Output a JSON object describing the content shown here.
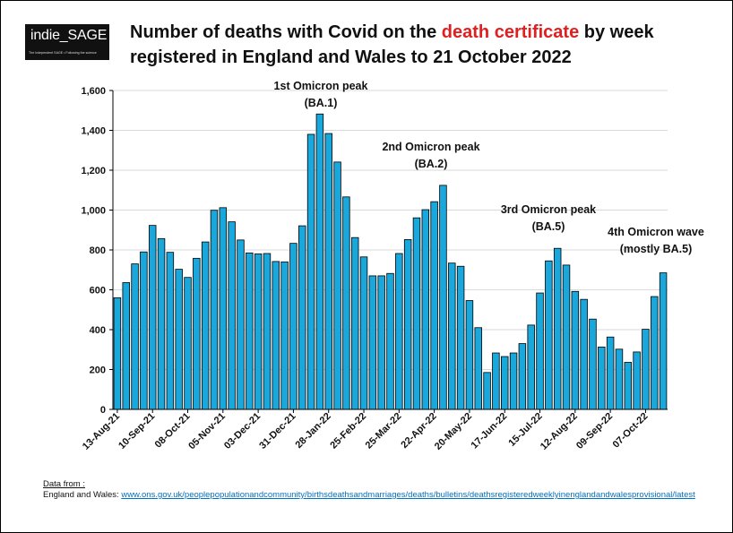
{
  "logo": {
    "name": "indie_SAGE",
    "tagline": "The Independent SAGE • Following the science"
  },
  "title": {
    "part1": "Number of deaths with Covid on the ",
    "highlight": "death certificate",
    "part2": " by week registered in England and Wales to 21 October 2022"
  },
  "colors": {
    "bar_fill": "#1aa7dc",
    "bar_stroke": "#000000",
    "highlight": "#e02020",
    "link": "#0070c0"
  },
  "source": {
    "heading": "Data from :",
    "label": "England and Wales:",
    "url": "www.ons.gov.uk/peoplepopulationandcommunity/birthsdeathsandmarriages/deaths/bulletins/deathsregisteredweeklyinenglandandwalesprovisional/latest"
  },
  "chart_data": {
    "type": "bar",
    "title": "Number of deaths with Covid on the death certificate by week registered in England and Wales to 21 October 2022",
    "xlabel": "",
    "ylabel": "",
    "ylim": [
      0,
      1600
    ],
    "yticks": [
      0,
      200,
      400,
      600,
      800,
      1000,
      1200,
      1400,
      1600
    ],
    "grid": true,
    "tick_labels": [
      "13-Aug-21",
      "10-Sep-21",
      "08-Oct-21",
      "05-Nov-21",
      "03-Dec-21",
      "31-Dec-21",
      "28-Jan-22",
      "25-Feb-22",
      "25-Mar-22",
      "22-Apr-22",
      "20-May-22",
      "17-Jun-22",
      "15-Jul-22",
      "12-Aug-22",
      "09-Sep-22",
      "07-Oct-22"
    ],
    "tick_every": 4,
    "categories": [
      "13-Aug-21",
      "20-Aug-21",
      "27-Aug-21",
      "03-Sep-21",
      "10-Sep-21",
      "17-Sep-21",
      "24-Sep-21",
      "01-Oct-21",
      "08-Oct-21",
      "15-Oct-21",
      "22-Oct-21",
      "29-Oct-21",
      "05-Nov-21",
      "12-Nov-21",
      "19-Nov-21",
      "26-Nov-21",
      "03-Dec-21",
      "10-Dec-21",
      "17-Dec-21",
      "24-Dec-21",
      "31-Dec-21",
      "07-Jan-22",
      "14-Jan-22",
      "21-Jan-22",
      "28-Jan-22",
      "04-Feb-22",
      "11-Feb-22",
      "18-Feb-22",
      "25-Feb-22",
      "04-Mar-22",
      "11-Mar-22",
      "18-Mar-22",
      "25-Mar-22",
      "01-Apr-22",
      "08-Apr-22",
      "15-Apr-22",
      "22-Apr-22",
      "29-Apr-22",
      "06-May-22",
      "13-May-22",
      "20-May-22",
      "27-May-22",
      "03-Jun-22",
      "10-Jun-22",
      "17-Jun-22",
      "24-Jun-22",
      "01-Jul-22",
      "08-Jul-22",
      "15-Jul-22",
      "22-Jul-22",
      "29-Jul-22",
      "05-Aug-22",
      "12-Aug-22",
      "19-Aug-22",
      "26-Aug-22",
      "02-Sep-22",
      "09-Sep-22",
      "16-Sep-22",
      "23-Sep-22",
      "30-Sep-22",
      "07-Oct-22",
      "14-Oct-22",
      "21-Oct-22"
    ],
    "values": [
      560,
      636,
      730,
      790,
      923,
      857,
      788,
      703,
      662,
      758,
      840,
      999,
      1012,
      941,
      850,
      785,
      780,
      782,
      742,
      740,
      833,
      921,
      1380,
      1482,
      1384,
      1241,
      1066,
      862,
      765,
      670,
      670,
      682,
      782,
      852,
      961,
      1002,
      1042,
      1124,
      734,
      718,
      546,
      410,
      185,
      283,
      265,
      283,
      330,
      423,
      584,
      745,
      808,
      724,
      592,
      552,
      453,
      313,
      363,
      302,
      236,
      288,
      402,
      566,
      685
    ],
    "annotations": [
      {
        "line1": "1st Omicron peak",
        "line2": "(BA.1)"
      },
      {
        "line1": "2nd Omicron peak",
        "line2": "(BA.2)"
      },
      {
        "line1": "3rd Omicron peak",
        "line2": "(BA.5)"
      },
      {
        "line1": "4th Omicron wave",
        "line2": "(mostly BA.5)"
      }
    ]
  }
}
